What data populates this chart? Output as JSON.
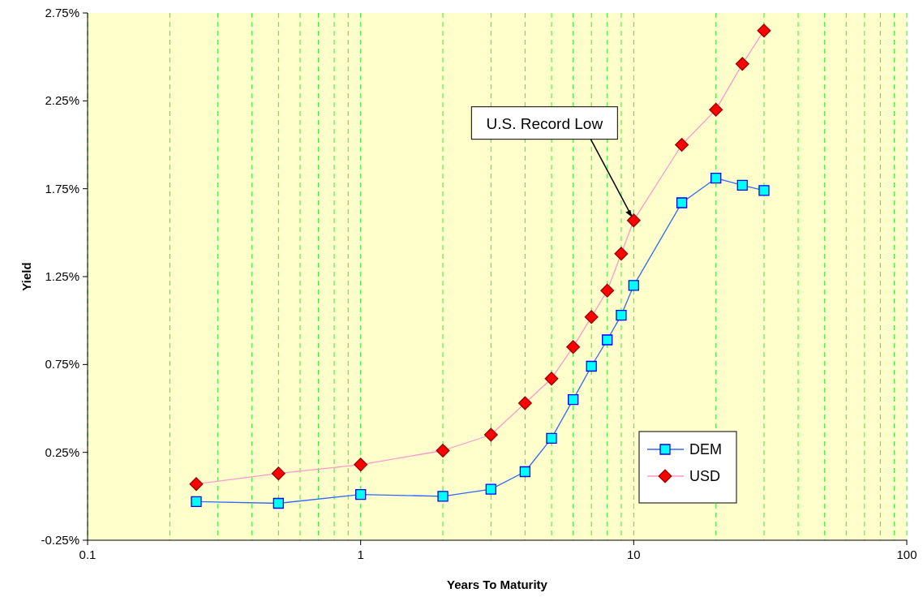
{
  "chart_data": {
    "type": "line",
    "xlabel": "Years To Maturity",
    "ylabel": "Yield",
    "log": "x",
    "xlim": [
      0.1,
      100
    ],
    "xticks": [
      0.1,
      {
        "value": 0.2,
        "label": null
      },
      {
        "value": 0.3,
        "label": null
      },
      {
        "value": 0.4,
        "label": null
      },
      {
        "value": 0.5,
        "label": null
      },
      {
        "value": 0.6,
        "label": null
      },
      {
        "value": 0.7,
        "label": null
      },
      {
        "value": 0.8,
        "label": null
      },
      {
        "value": 0.9,
        "label": null
      },
      1,
      {
        "value": 2,
        "label": null
      },
      {
        "value": 3,
        "label": null
      },
      {
        "value": 4,
        "label": null
      },
      {
        "value": 5,
        "label": null
      },
      {
        "value": 6,
        "label": null
      },
      {
        "value": 7,
        "label": null
      },
      {
        "value": 8,
        "label": null
      },
      {
        "value": 9,
        "label": null
      },
      10,
      {
        "value": 20,
        "label": null
      },
      {
        "value": 30,
        "label": null
      },
      {
        "value": 40,
        "label": null
      },
      {
        "value": 50,
        "label": null
      },
      {
        "value": 60,
        "label": null
      },
      {
        "value": 70,
        "label": null
      },
      {
        "value": 80,
        "label": null
      },
      {
        "value": 90,
        "label": null
      },
      100
    ],
    "ylim": [
      -0.25,
      2.75
    ],
    "yticks": [
      {
        "value": -0.25,
        "label": "-0.25%"
      },
      {
        "value": 0.25,
        "label": "0.25%"
      },
      {
        "value": 0.75,
        "label": "0.75%"
      },
      {
        "value": 1.25,
        "label": "1.25%"
      },
      {
        "value": 1.75,
        "label": "1.75%"
      },
      {
        "value": 2.25,
        "label": "2.25%"
      },
      {
        "value": 2.75,
        "label": "2.75%"
      }
    ],
    "grid": "x",
    "legend": "bottom right",
    "line_style": "solid",
    "x": [
      0.25,
      0.5,
      1,
      2,
      3,
      4,
      5,
      6,
      7,
      8,
      9,
      10,
      15,
      20,
      25,
      30
    ],
    "series": [
      {
        "name": "DEM",
        "color": "#00ffff",
        "marker": "square",
        "values": [
          -0.03,
          -0.04,
          0.01,
          0.0,
          0.04,
          0.14,
          0.33,
          0.55,
          0.74,
          0.89,
          1.03,
          1.2,
          1.67,
          1.81,
          1.77,
          1.74
        ]
      },
      {
        "name": "USD",
        "color": "#ff0000",
        "marker": "diamond",
        "values": [
          0.07,
          0.13,
          0.18,
          0.26,
          0.35,
          0.53,
          0.67,
          0.85,
          1.02,
          1.17,
          1.38,
          1.57,
          2.0,
          2.2,
          2.46,
          2.65
        ]
      }
    ],
    "annotations": [
      {
        "text": "U.S. Record Low",
        "x": 10,
        "y": 1.57
      }
    ]
  }
}
